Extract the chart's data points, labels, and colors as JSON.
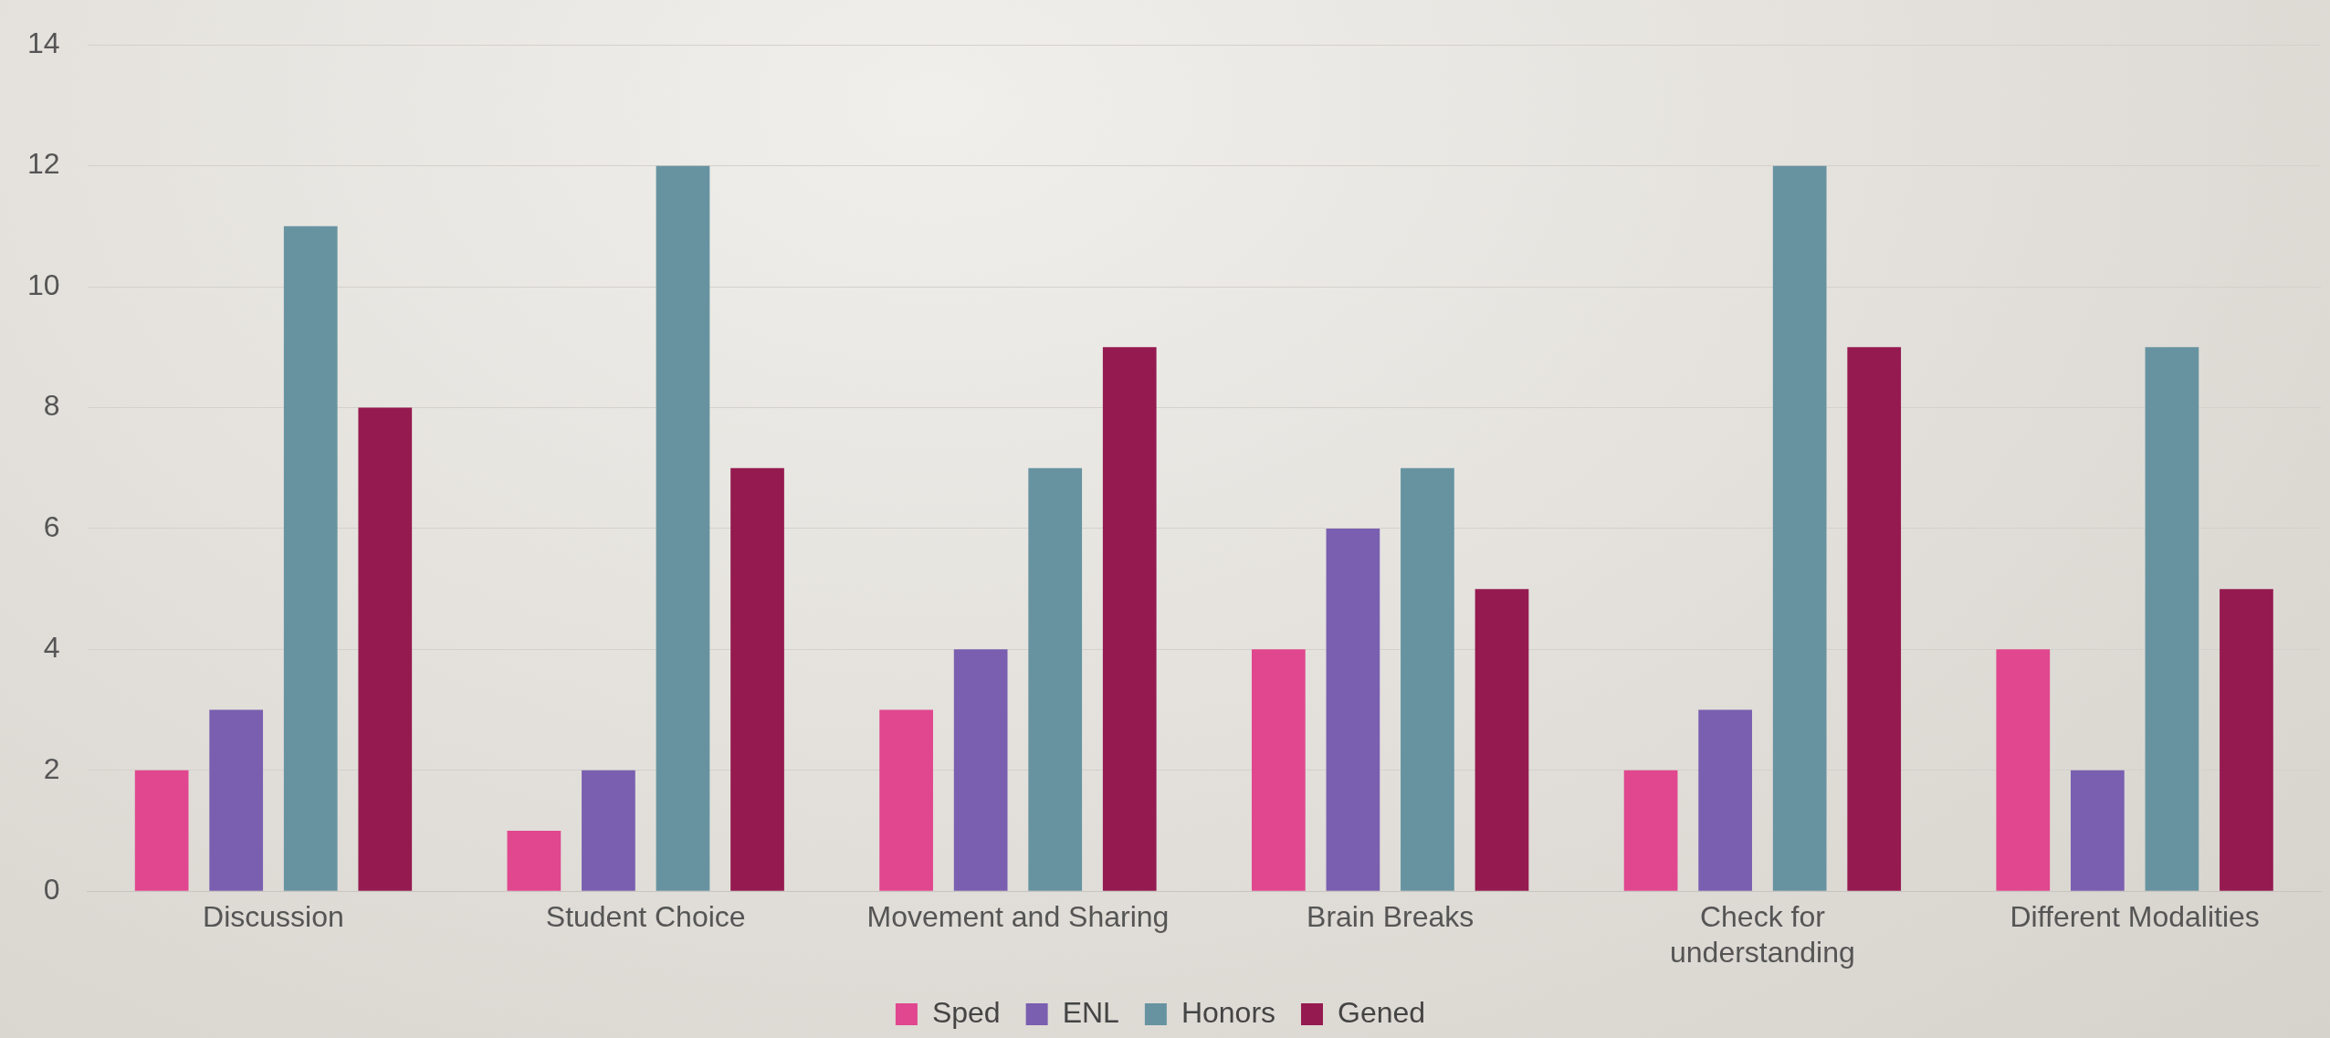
{
  "chart_data": {
    "type": "bar",
    "categories": [
      "Discussion",
      "Student Choice",
      "Movement and Sharing",
      "Brain Breaks",
      "Check for understanding",
      "Different Modalities"
    ],
    "series": [
      {
        "name": "Sped",
        "color": "#e0478e",
        "values": [
          2,
          1,
          3,
          4,
          2,
          4
        ]
      },
      {
        "name": "ENL",
        "color": "#7a5fb0",
        "values": [
          3,
          2,
          4,
          6,
          3,
          2
        ]
      },
      {
        "name": "Honors",
        "color": "#6793a1",
        "values": [
          11,
          12,
          7,
          7,
          12,
          9
        ]
      },
      {
        "name": "Gened",
        "color": "#951a50",
        "values": [
          8,
          7,
          9,
          5,
          9,
          5
        ]
      }
    ],
    "ylim": [
      0,
      14
    ],
    "yticks": [
      0,
      2,
      4,
      6,
      8,
      10,
      12,
      14
    ],
    "grid": "y",
    "legend": "bottom"
  }
}
